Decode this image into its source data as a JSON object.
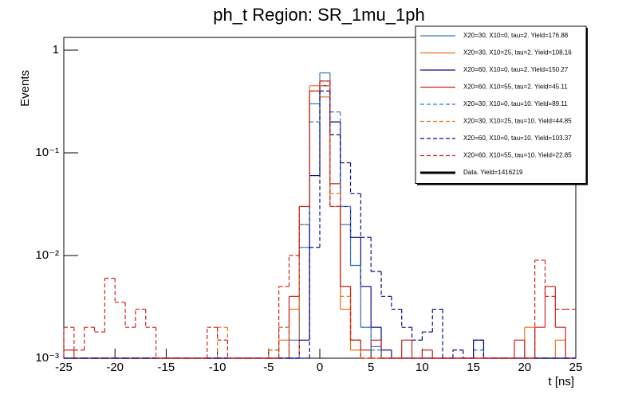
{
  "chart_data": {
    "type": "histogram",
    "title": "ph_t Region: SR_1mu_1ph",
    "x_label": "t [ns]",
    "y_label": "Events",
    "log_y": true,
    "legend": "top-right",
    "bins": [
      -25,
      -24,
      -23,
      -22,
      -21,
      -20,
      -19,
      -18,
      -17,
      -16,
      -15,
      -14,
      -13,
      -12,
      -11,
      -10,
      -9,
      -8,
      -7,
      -6,
      -5,
      -4,
      -3,
      -2,
      -1,
      0,
      1,
      2,
      3,
      4,
      5,
      6,
      7,
      8,
      9,
      10,
      11,
      12,
      13,
      14,
      15,
      16,
      17,
      18,
      19,
      20,
      21,
      22,
      23,
      24,
      25
    ],
    "xlim": [
      -25,
      25
    ],
    "xticks": [
      -25,
      -20,
      -15,
      -10,
      -5,
      0,
      5,
      10,
      15,
      20,
      25
    ],
    "ylim": [
      0.001,
      1.33
    ],
    "yticks": [
      {
        "value": 0.001,
        "label": "10⁻³"
      },
      {
        "value": 0.01,
        "label": "10⁻²"
      },
      {
        "value": 0.1,
        "label": "10⁻¹"
      },
      1
    ],
    "series": [
      {
        "name": "X20=30, X10=0, tau=2. Yield=176.88",
        "color": "#3b78b5",
        "dashed": false,
        "values": [
          0,
          0,
          0,
          0,
          0,
          0,
          0,
          0,
          0,
          0,
          0,
          0,
          0,
          0,
          0,
          0,
          0,
          0,
          0,
          0,
          0,
          0,
          0.0015,
          0.012,
          0.3,
          0.6,
          0.2,
          0.02,
          0.008,
          0.002,
          0.0013,
          0,
          0,
          0,
          0,
          0,
          0,
          0,
          0,
          0,
          0,
          0,
          0,
          0,
          0,
          0,
          0,
          0,
          0,
          0
        ]
      },
      {
        "name": "X20=30, X10=25, tau=2. Yield=108.16",
        "color": "#e8731e",
        "dashed": false,
        "values": [
          0,
          0,
          0,
          0,
          0,
          0,
          0,
          0,
          0,
          0,
          0,
          0,
          0,
          0,
          0,
          0,
          0,
          0,
          0,
          0,
          0,
          0.0015,
          0.003,
          0.02,
          0.45,
          0.35,
          0.03,
          0.003,
          0.0012,
          0,
          0,
          0,
          0,
          0,
          0,
          0,
          0,
          0,
          0,
          0,
          0,
          0,
          0,
          0,
          0,
          0.002,
          0,
          0,
          0.0015,
          0
        ]
      },
      {
        "name": "X20=60, X10=0, tau=2. Yield=150.27",
        "color": "#0a0a8c",
        "dashed": false,
        "values": [
          0,
          0,
          0,
          0,
          0,
          0,
          0,
          0,
          0,
          0,
          0,
          0,
          0,
          0,
          0,
          0,
          0,
          0,
          0,
          0,
          0,
          0,
          0,
          0.0015,
          0.06,
          0.45,
          0.2,
          0.03,
          0.015,
          0.005,
          0.002,
          0.0012,
          0,
          0,
          0,
          0,
          0,
          0,
          0,
          0,
          0.0015,
          0,
          0,
          0,
          0,
          0,
          0,
          0,
          0,
          0
        ]
      },
      {
        "name": "X20=60, X10=55, tau=2. Yield=45.11",
        "color": "#d0211f",
        "dashed": false,
        "values": [
          0.0012,
          0,
          0,
          0,
          0,
          0,
          0,
          0,
          0,
          0,
          0,
          0,
          0,
          0,
          0,
          0,
          0,
          0,
          0,
          0,
          0,
          0,
          0.004,
          0.03,
          0.4,
          0.5,
          0.05,
          0.005,
          0.0015,
          0.0012,
          0.0015,
          0,
          0,
          0.0015,
          0,
          0.0012,
          0,
          0,
          0,
          0,
          0,
          0,
          0,
          0,
          0.0015,
          0,
          0.002,
          0.005,
          0.002,
          0
        ]
      },
      {
        "name": "X20=30, X10=0, tau=10. Yield=89.11",
        "color": "#3b78b5",
        "dashed": true,
        "values": [
          0,
          0,
          0,
          0,
          0,
          0,
          0,
          0,
          0,
          0,
          0,
          0,
          0,
          0,
          0,
          0,
          0,
          0,
          0,
          0,
          0.0012,
          0.002,
          0,
          0.02,
          0.2,
          0.4,
          0.25,
          0.03,
          0.008,
          0.002,
          0.0012,
          0,
          0,
          0,
          0,
          0,
          0,
          0,
          0,
          0,
          0.0012,
          0,
          0,
          0,
          0,
          0,
          0,
          0,
          0,
          0
        ]
      },
      {
        "name": "X20=30, X10=25, tau=10. Yield=44.85",
        "color": "#e8731e",
        "dashed": true,
        "values": [
          0,
          0,
          0,
          0,
          0,
          0,
          0,
          0,
          0,
          0,
          0,
          0,
          0,
          0,
          0,
          0.002,
          0,
          0,
          0,
          0,
          0.0012,
          0.002,
          0,
          0.03,
          0.4,
          0.45,
          0.04,
          0.004,
          0.0015,
          0,
          0,
          0,
          0,
          0,
          0,
          0,
          0,
          0,
          0,
          0,
          0,
          0,
          0,
          0,
          0,
          0,
          0,
          0,
          0,
          0
        ]
      },
      {
        "name": "X20=60, X10=0, tau=10. Yield=103.37",
        "color": "#0a0a8c",
        "dashed": true,
        "values": [
          0,
          0,
          0,
          0,
          0,
          0,
          0,
          0,
          0,
          0,
          0,
          0,
          0,
          0,
          0,
          0,
          0,
          0,
          0,
          0,
          0,
          0,
          0,
          0,
          0.012,
          0.4,
          0.15,
          0.08,
          0.04,
          0.015,
          0.007,
          0.004,
          0.003,
          0.002,
          0.0015,
          0.0018,
          0.003,
          0,
          0.0012,
          0,
          0.0015,
          0,
          0,
          0,
          0,
          0,
          0,
          0,
          0,
          0
        ]
      },
      {
        "name": "X20=60, X10=55, tau=10. Yield=22.85",
        "color": "#d0211f",
        "dashed": true,
        "values": [
          0.002,
          0.0012,
          0.002,
          0.0018,
          0.006,
          0.0035,
          0.002,
          0.003,
          0.002,
          0,
          0,
          0,
          0,
          0,
          0.002,
          0.0015,
          0,
          0,
          0,
          0,
          0,
          0.005,
          0.01,
          0.03,
          0.4,
          0.5,
          0.03,
          0.005,
          0.0015,
          0,
          0,
          0,
          0,
          0,
          0,
          0,
          0,
          0,
          0,
          0,
          0,
          0,
          0,
          0,
          0,
          0,
          0.009,
          0.004,
          0.003,
          0.003
        ]
      },
      {
        "name": "Data. Yield=1416219",
        "color": "#000000",
        "dashed": false,
        "thick": true,
        "values": [
          null,
          null,
          null,
          null,
          null,
          null,
          null,
          null,
          null,
          null,
          null,
          null,
          null,
          null,
          null,
          null,
          null,
          null,
          null,
          null,
          null,
          null,
          null,
          null,
          null,
          null,
          null,
          null,
          null,
          null,
          null,
          null,
          null,
          null,
          null,
          null,
          null,
          null,
          null,
          null,
          null,
          null,
          null,
          null,
          null,
          null,
          null,
          null,
          null,
          null
        ]
      }
    ]
  }
}
